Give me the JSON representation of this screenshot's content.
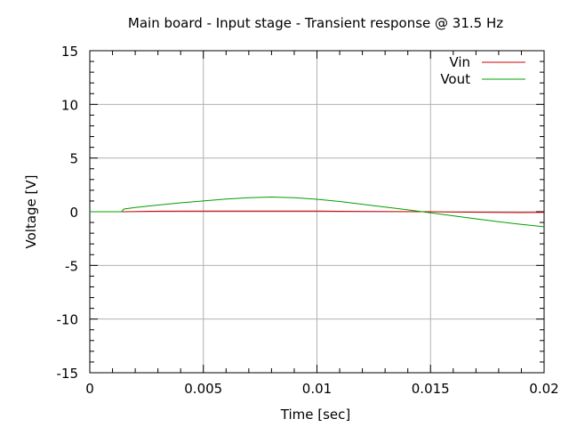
{
  "chart_data": {
    "type": "line",
    "title": "Main board - Input stage - Transient response @ 31.5 Hz",
    "xlabel": "Time [sec]",
    "ylabel": "Voltage [V]",
    "xlim": [
      0,
      0.02
    ],
    "ylim": [
      -15,
      15
    ],
    "x_ticks": [
      {
        "value": 0,
        "label": "0"
      },
      {
        "value": 0.005,
        "label": "0.005"
      },
      {
        "value": 0.01,
        "label": "0.01"
      },
      {
        "value": 0.015,
        "label": "0.015"
      },
      {
        "value": 0.02,
        "label": "0.02"
      }
    ],
    "y_ticks": [
      {
        "value": -15,
        "label": "-15"
      },
      {
        "value": -10,
        "label": "-10"
      },
      {
        "value": -5,
        "label": "-5"
      },
      {
        "value": 0,
        "label": "0"
      },
      {
        "value": 5,
        "label": "5"
      },
      {
        "value": 10,
        "label": "10"
      },
      {
        "value": 15,
        "label": "15"
      }
    ],
    "grid": true,
    "legend_position": "top-right",
    "series": [
      {
        "name": "Vin",
        "color": "#cc0000",
        "x": [
          0,
          0.0015,
          0.0031,
          0.006,
          0.0079,
          0.01,
          0.0127,
          0.015,
          0.016,
          0.019,
          0.02
        ],
        "y": [
          0,
          0.0,
          0.05,
          0.06,
          0.07,
          0.06,
          0.02,
          0.0,
          -0.03,
          -0.08,
          -0.06
        ]
      },
      {
        "name": "Vout",
        "color": "#00a000",
        "x": [
          0,
          0.0014,
          0.0015,
          0.002,
          0.003,
          0.004,
          0.005,
          0.006,
          0.007,
          0.008,
          0.009,
          0.01,
          0.011,
          0.012,
          0.013,
          0.014,
          0.015,
          0.016,
          0.017,
          0.018,
          0.019,
          0.02
        ],
        "y": [
          0,
          0.0,
          0.25,
          0.4,
          0.62,
          0.83,
          1.0,
          1.18,
          1.31,
          1.37,
          1.31,
          1.16,
          0.95,
          0.7,
          0.43,
          0.17,
          -0.1,
          -0.38,
          -0.66,
          -0.93,
          -1.18,
          -1.4
        ]
      }
    ]
  }
}
